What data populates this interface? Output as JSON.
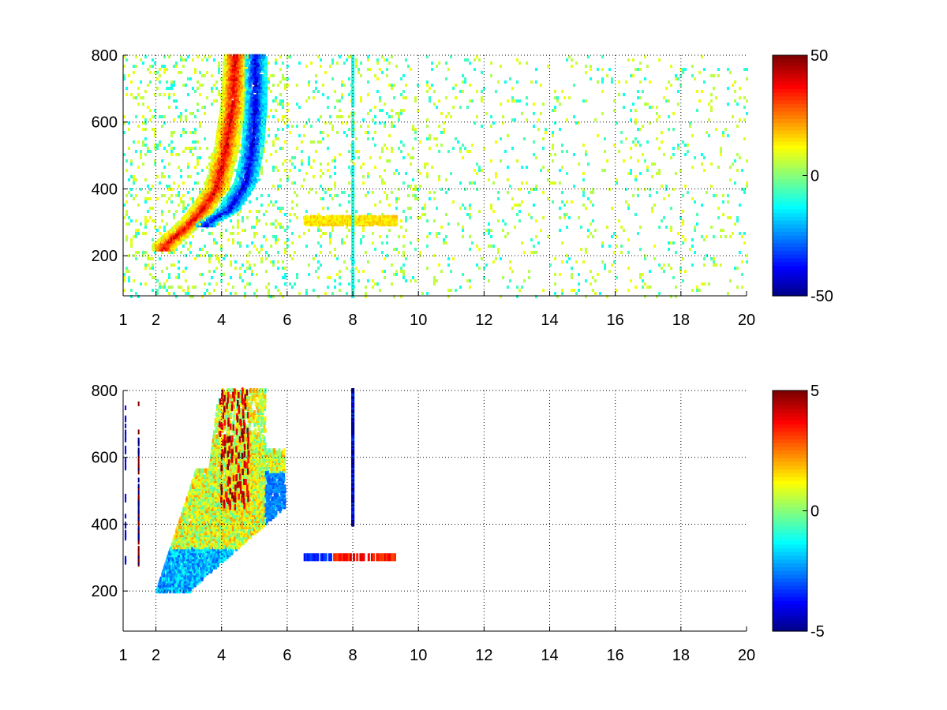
{
  "chart_data": [
    {
      "type": "heatmap",
      "title": "",
      "xlabel": "",
      "ylabel": "",
      "xlim": [
        1,
        20
      ],
      "ylim": [
        80,
        800
      ],
      "x_ticks": [
        1,
        2,
        4,
        6,
        8,
        10,
        12,
        14,
        16,
        18,
        20
      ],
      "y_ticks": [
        200,
        400,
        600,
        800
      ],
      "grid": true,
      "colormap": "jet",
      "colorbar": {
        "min": -50,
        "max": 50,
        "ticks": [
          50,
          0,
          -50
        ]
      },
      "features": [
        {
          "description_id": "positive_ridge",
          "points": [
            [
              2.2,
              230
            ],
            [
              2.8,
              280
            ],
            [
              3.3,
              330
            ],
            [
              3.8,
              400
            ],
            [
              4.1,
              520
            ],
            [
              4.3,
              650
            ],
            [
              4.4,
              800
            ]
          ],
          "value": 40
        },
        {
          "description_id": "negative_ridge",
          "points": [
            [
              3.5,
              300
            ],
            [
              4.2,
              340
            ],
            [
              4.7,
              420
            ],
            [
              4.9,
              520
            ],
            [
              5.0,
              650
            ],
            [
              5.0,
              800
            ]
          ],
          "value": -40
        },
        {
          "description_id": "horizontal_band",
          "x_range": [
            6.5,
            9.3
          ],
          "y": 305,
          "value": 15
        },
        {
          "description_id": "vertical_line_8",
          "x": 8.0,
          "y_range": [
            80,
            800
          ],
          "value": -10
        },
        {
          "description_id": "scattered_noise",
          "x_range": [
            1,
            20
          ],
          "value_range": [
            -10,
            12
          ]
        }
      ]
    },
    {
      "type": "heatmap",
      "title": "",
      "xlabel": "",
      "ylabel": "",
      "xlim": [
        1,
        20
      ],
      "ylim": [
        80,
        800
      ],
      "x_ticks": [
        1,
        2,
        4,
        6,
        8,
        10,
        12,
        14,
        16,
        18,
        20
      ],
      "y_ticks": [
        200,
        400,
        600,
        800
      ],
      "grid": true,
      "colormap": "jet",
      "colorbar": {
        "min": -5,
        "max": 5,
        "ticks": [
          5,
          0,
          -5
        ]
      },
      "features": [
        {
          "description_id": "blob_main",
          "x_range": [
            2.0,
            5.9
          ],
          "y_range": [
            200,
            800
          ],
          "value": 1
        },
        {
          "description_id": "blob_lower_edge",
          "points": [
            [
              2.2,
              230
            ],
            [
              3.0,
              260
            ],
            [
              4.0,
              300
            ],
            [
              5.0,
              340
            ]
          ],
          "value": -2
        },
        {
          "description_id": "hot_streaks",
          "x_range": [
            3.9,
            4.8
          ],
          "y_range": [
            450,
            800
          ],
          "value": 5
        },
        {
          "description_id": "band_negative",
          "x_range": [
            6.5,
            7.3
          ],
          "y": 305,
          "value": -4
        },
        {
          "description_id": "band_positive",
          "x_range": [
            7.4,
            9.3
          ],
          "y": 305,
          "value": 3
        },
        {
          "description_id": "vertical_line_8",
          "x": 8.0,
          "y_range": [
            400,
            800
          ],
          "value": -4
        }
      ]
    }
  ]
}
